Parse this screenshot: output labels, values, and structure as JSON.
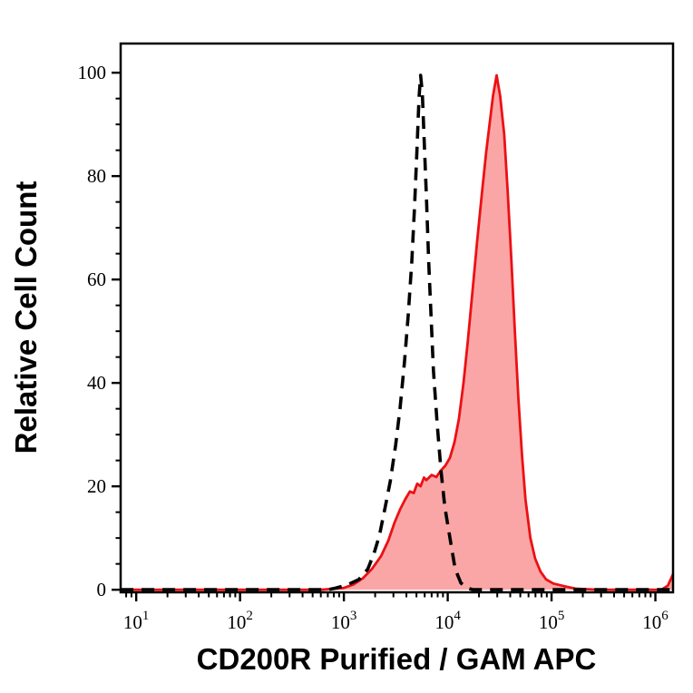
{
  "figure": {
    "xlabel": "CD200R Purified / GAM APC",
    "ylabel": "Relative Cell Count"
  },
  "colors": {
    "background": "#ffffff",
    "frame": "#000000",
    "control_line": "#000000",
    "sample_line": "#ec1014",
    "sample_fill": "#fba6a6",
    "text": "#000000"
  },
  "chart_data": {
    "type": "area",
    "subtype": "flow-cytometry-overlay-histogram",
    "title": "",
    "xlabel": "CD200R Purified / GAM APC",
    "ylabel": "Relative Cell Count",
    "xscale": "log",
    "grid": false,
    "legend": "none",
    "x_log_range": [
      0.85,
      6.17
    ],
    "y_range": [
      -0.5,
      105.64
    ],
    "x_ticks": {
      "mantissa": "10",
      "exponents": [
        1,
        2,
        3,
        4,
        5,
        6
      ]
    },
    "x_minor_ticks": "2-9 per decade (log spacing)",
    "y_ticks": {
      "major": [
        0,
        20,
        40,
        60,
        80,
        100
      ],
      "minor_step": 5
    },
    "series": [
      {
        "name": "CD200R stained (red filled)",
        "style": "solid",
        "line_color": "#ec1014",
        "fill_color": "#fba6a6",
        "line_width": 2.8,
        "points": [
          [
            7.1,
            0
          ],
          [
            200,
            0
          ],
          [
            600,
            0
          ],
          [
            980,
            0.3
          ],
          [
            1240,
            1
          ],
          [
            1520,
            2.2
          ],
          [
            1860,
            4
          ],
          [
            2280,
            6.5
          ],
          [
            2680,
            9.5
          ],
          [
            3080,
            13
          ],
          [
            3470,
            15.5
          ],
          [
            3900,
            17.5
          ],
          [
            4320,
            19
          ],
          [
            4700,
            18.7
          ],
          [
            5080,
            20.5
          ],
          [
            5480,
            20
          ],
          [
            5900,
            21.7
          ],
          [
            6230,
            21.2
          ],
          [
            7000,
            22.2
          ],
          [
            7760,
            21.8
          ],
          [
            8550,
            23
          ],
          [
            9500,
            24
          ],
          [
            10500,
            25.5
          ],
          [
            11600,
            28.5
          ],
          [
            12800,
            33
          ],
          [
            14200,
            40
          ],
          [
            15600,
            48
          ],
          [
            17300,
            57.5
          ],
          [
            19100,
            67
          ],
          [
            21200,
            76
          ],
          [
            23400,
            84.5
          ],
          [
            25300,
            90
          ],
          [
            27300,
            95.5
          ],
          [
            29600,
            99.5
          ],
          [
            32000,
            95.5
          ],
          [
            35000,
            88
          ],
          [
            37800,
            77
          ],
          [
            41000,
            64
          ],
          [
            44300,
            50
          ],
          [
            47900,
            37
          ],
          [
            51900,
            26
          ],
          [
            56100,
            17.5
          ],
          [
            62500,
            10
          ],
          [
            69600,
            6
          ],
          [
            78300,
            3.5
          ],
          [
            88500,
            2
          ],
          [
            104000,
            1.2
          ],
          [
            132000,
            0.7
          ],
          [
            171000,
            0.2
          ],
          [
            283000,
            0
          ],
          [
            1150000,
            0
          ],
          [
            1320000,
            0.8
          ],
          [
            1480000,
            3
          ]
        ]
      },
      {
        "name": "negative control (black dashed)",
        "style": "dashed",
        "line_color": "#000000",
        "fill_color": "none",
        "line_width": 3.6,
        "dash_pattern": [
          14,
          9
        ],
        "points": [
          [
            7.1,
            0
          ],
          [
            100,
            0
          ],
          [
            400,
            0
          ],
          [
            700,
            0
          ],
          [
            830,
            0.3
          ],
          [
            1100,
            1
          ],
          [
            1400,
            2
          ],
          [
            1700,
            4
          ],
          [
            1950,
            7
          ],
          [
            2200,
            10.5
          ],
          [
            2500,
            16
          ],
          [
            2800,
            21
          ],
          [
            3150,
            28
          ],
          [
            3470,
            35
          ],
          [
            3830,
            44
          ],
          [
            4160,
            53
          ],
          [
            4510,
            63.5
          ],
          [
            4790,
            74
          ],
          [
            5080,
            86
          ],
          [
            5290,
            95
          ],
          [
            5480,
            99.5
          ],
          [
            5690,
            96
          ],
          [
            5900,
            88
          ],
          [
            6230,
            76
          ],
          [
            6560,
            63.5
          ],
          [
            6910,
            53
          ],
          [
            7280,
            42.5
          ],
          [
            7920,
            32
          ],
          [
            8610,
            23
          ],
          [
            9370,
            16
          ],
          [
            10700,
            9
          ],
          [
            11800,
            4
          ],
          [
            13400,
            1.3
          ],
          [
            15500,
            0.3
          ],
          [
            17500,
            0
          ],
          [
            30000,
            0
          ],
          [
            100000,
            0
          ],
          [
            500000,
            0
          ],
          [
            1480000,
            0
          ]
        ]
      }
    ]
  }
}
